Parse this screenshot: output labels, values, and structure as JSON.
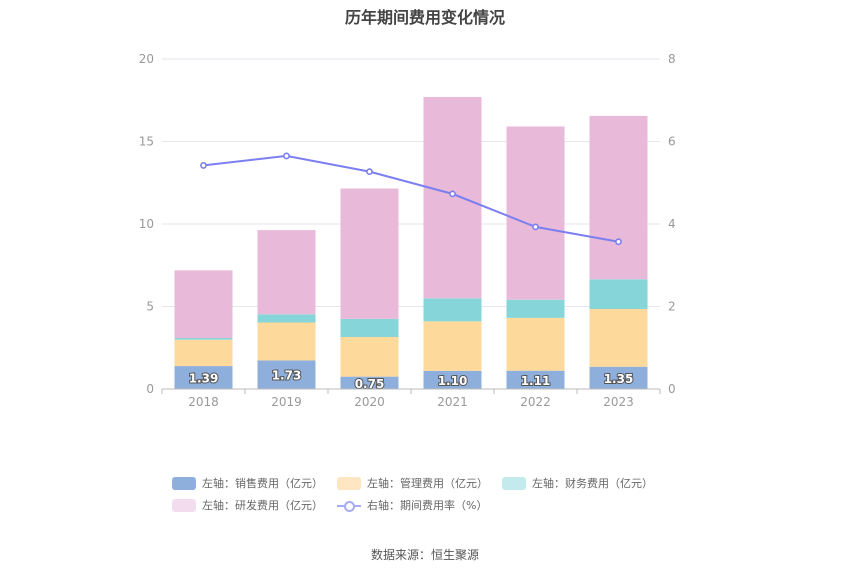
{
  "chart_data": {
    "type": "bar",
    "title": "历年期间费用变化情况",
    "categories": [
      "2018",
      "2019",
      "2020",
      "2021",
      "2022",
      "2023"
    ],
    "y_left": {
      "ylim": [
        0,
        20
      ],
      "ticks": [
        "0",
        "5",
        "10",
        "15",
        "20"
      ]
    },
    "y_right": {
      "ylim": [
        0,
        8
      ],
      "ticks": [
        "0",
        "2",
        "4",
        "6",
        "8"
      ]
    },
    "stacked_series": [
      {
        "name": "左轴：销售费用（亿元）",
        "color": "#8eafdc",
        "values": [
          1.39,
          1.73,
          0.75,
          1.1,
          1.11,
          1.35
        ],
        "labels": [
          "1.39",
          "1.73",
          "0.75",
          "1.10",
          "1.11",
          "1.35"
        ]
      },
      {
        "name": "左轴：管理费用（亿元）",
        "color": "#fdd99b",
        "values": [
          1.6,
          2.3,
          2.4,
          3.0,
          3.2,
          3.5
        ]
      },
      {
        "name": "左轴：财务费用（亿元）",
        "color": "#86d6d9",
        "values": [
          0.1,
          0.5,
          1.1,
          1.4,
          1.1,
          1.8
        ]
      },
      {
        "name": "左轴：研发费用（亿元）",
        "color": "#e8b9d9",
        "values": [
          4.1,
          5.1,
          7.9,
          12.2,
          10.5,
          9.9
        ]
      }
    ],
    "line_series": {
      "name": "右轴：期间费用率（%）",
      "color": "#7b7ff0",
      "values": [
        5.42,
        5.65,
        5.27,
        4.73,
        3.93,
        3.57
      ]
    },
    "grid": true,
    "legend_position": "bottom"
  },
  "legend": {
    "row1": [
      "左轴：销售费用（亿元）",
      "左轴：管理费用（亿元）",
      "左轴：财务费用（亿元）"
    ],
    "row2": [
      "左轴：研发费用（亿元）",
      "右轴：期间费用率（%）"
    ],
    "colors": [
      "#8eafdc",
      "#fee6c2",
      "#c3eaec",
      "#f3dcee"
    ]
  },
  "source": "数据来源：恒生聚源"
}
